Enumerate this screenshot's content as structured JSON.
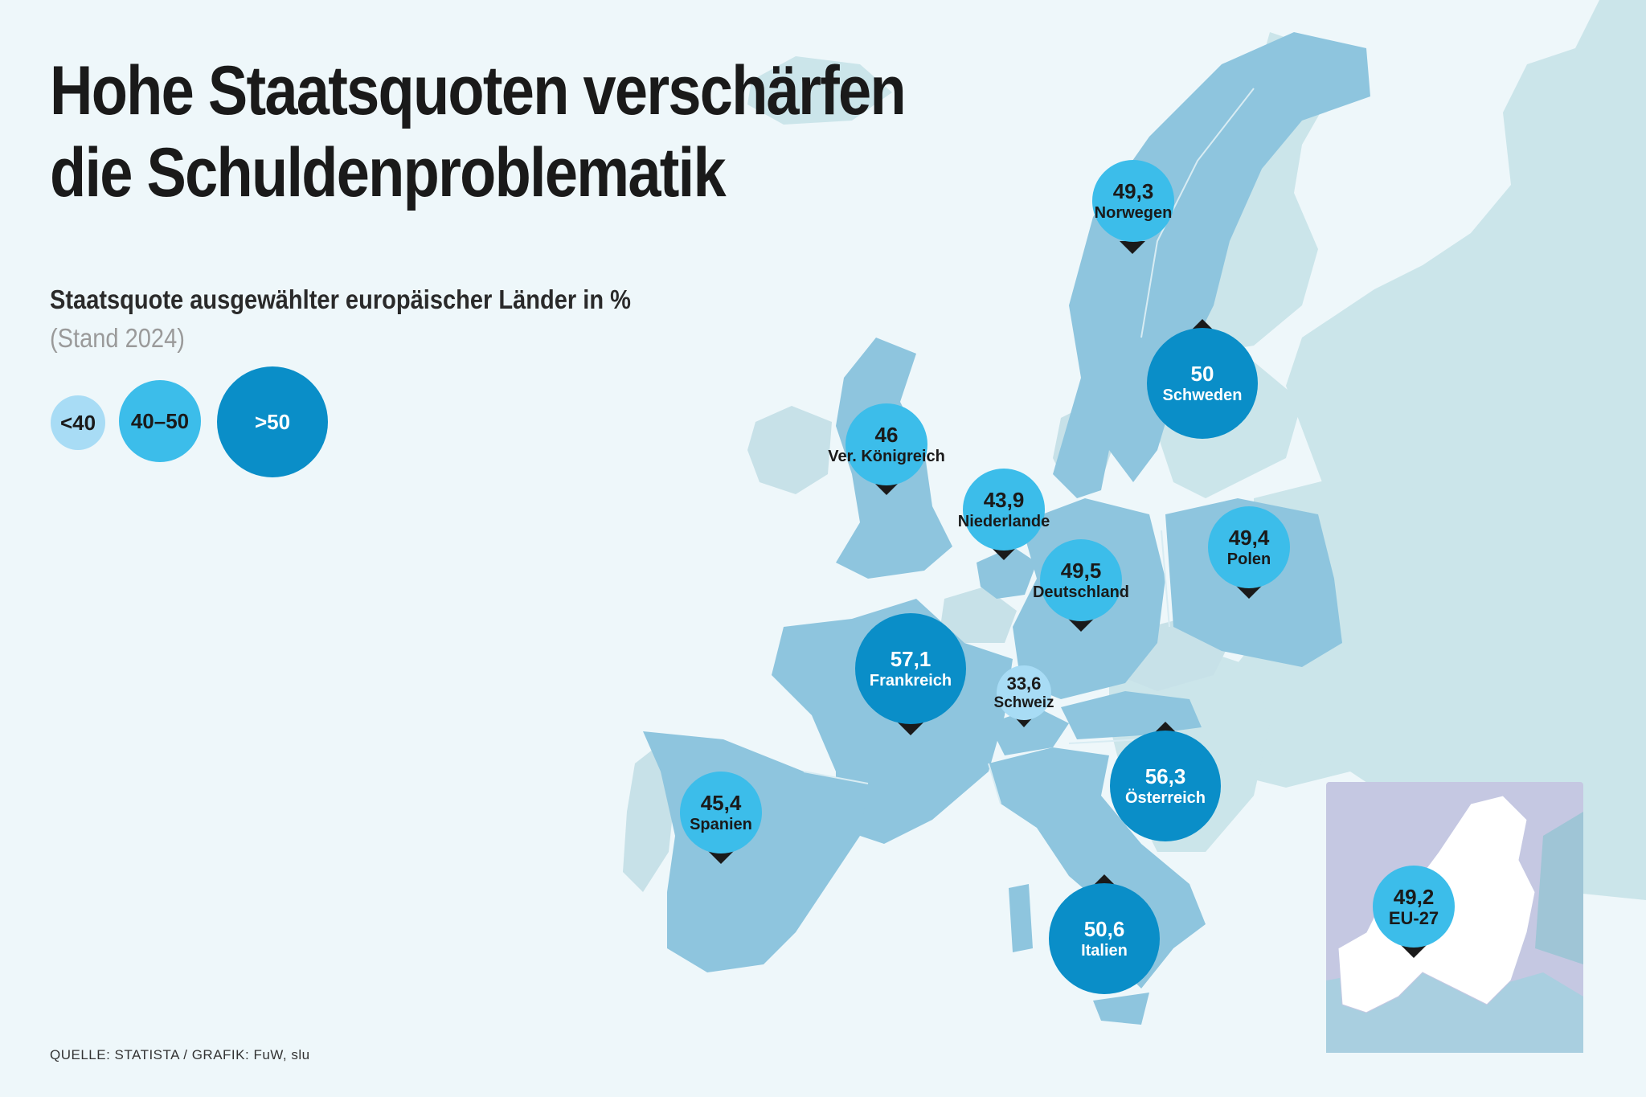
{
  "title_line1": "Hohe Staatsquoten verschärfen",
  "title_line2": "die Schuldenproblematik",
  "subtitle": "Staatsquote ausgewählter europäischer Länder in %",
  "stand": "(Stand 2024)",
  "legend": [
    {
      "label": "<40",
      "color": "#a8dcf5"
    },
    {
      "label": "40–50",
      "color": "#3cbdea"
    },
    {
      "label": ">50",
      "color": "#0a8ec8"
    }
  ],
  "source": "QUELLE: STATISTA / GRAFIK: FuW, slu",
  "colors": {
    "background": "#eef7fa",
    "land_other": "#cbe5ea",
    "land_selected": "#8ec5de",
    "land_pale": "#c7e1e8",
    "border": "#d8ecf3",
    "pointer": "#1a1a1a",
    "inset_background": "#c5c8e2",
    "inset_eu": "#ffffff"
  },
  "countries": [
    {
      "name": "Norwegen",
      "value": "49,3",
      "category": "40–50"
    },
    {
      "name": "Schweden",
      "value": "50",
      "category": ">50"
    },
    {
      "name": "Ver. Königreich",
      "value": "46",
      "category": "40–50"
    },
    {
      "name": "Niederlande",
      "value": "43,9",
      "category": "40–50"
    },
    {
      "name": "Polen",
      "value": "49,4",
      "category": "40–50"
    },
    {
      "name": "Deutschland",
      "value": "49,5",
      "category": "40–50"
    },
    {
      "name": "Frankreich",
      "value": "57,1",
      "category": ">50"
    },
    {
      "name": "Schweiz",
      "value": "33,6",
      "category": "<40"
    },
    {
      "name": "Spanien",
      "value": "45,4",
      "category": "40–50"
    },
    {
      "name": "Österreich",
      "value": "56,3",
      "category": ">50"
    },
    {
      "name": "Italien",
      "value": "50,6",
      "category": ">50"
    }
  ],
  "inset": {
    "name": "EU-27",
    "value": "49,2",
    "category": "40–50"
  }
}
